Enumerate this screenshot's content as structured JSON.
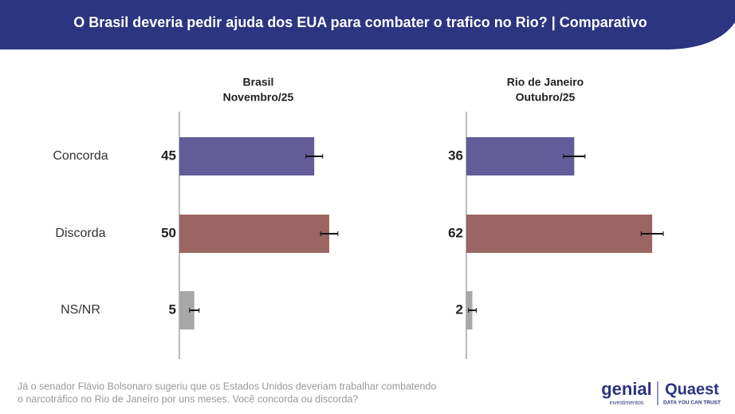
{
  "header": {
    "title": "O Brasil deveria pedir ajuda dos EUA para combater o trafico no Rio? | Comparativo"
  },
  "chart_data": {
    "type": "bar",
    "categories": [
      "Concorda",
      "Discorda",
      "NS/NR"
    ],
    "colors": [
      "#635c99",
      "#9a6562",
      "#a8a8a8"
    ],
    "panels": [
      {
        "title": [
          "Brasil",
          "Novembro/25"
        ],
        "values": [
          45,
          50,
          5
        ],
        "errors": [
          2.8,
          2.9,
          1.6
        ]
      },
      {
        "title": [
          "Rio de Janeiro",
          "Outubro/25"
        ],
        "values": [
          36,
          62,
          2
        ],
        "errors": [
          3.6,
          3.7,
          1.3
        ]
      }
    ]
  },
  "footer": {
    "question": [
      "Já o senador Flávio Bolsonaro sugeriu que os Estados Unidos deveriam trabalhar combatendo",
      "o narcotráfico no Rio de Janeiro por uns meses. Você concorda ou discorda?"
    ],
    "logos": [
      "genial",
      "investimentos",
      "Quaest",
      "DATA YOU CAN TRUST"
    ]
  }
}
